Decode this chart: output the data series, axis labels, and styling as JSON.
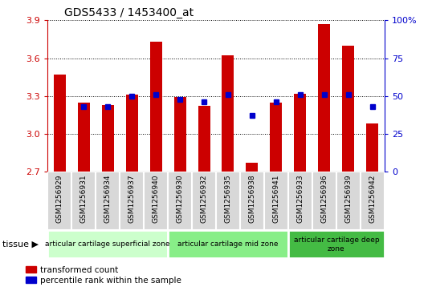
{
  "title": "GDS5433 / 1453400_at",
  "samples": [
    "GSM1256929",
    "GSM1256931",
    "GSM1256934",
    "GSM1256937",
    "GSM1256940",
    "GSM1256930",
    "GSM1256932",
    "GSM1256935",
    "GSM1256938",
    "GSM1256941",
    "GSM1256933",
    "GSM1256936",
    "GSM1256939",
    "GSM1256942"
  ],
  "transformed_count": [
    3.47,
    3.25,
    3.23,
    3.31,
    3.73,
    3.29,
    3.22,
    3.62,
    2.77,
    3.25,
    3.32,
    3.87,
    3.7,
    3.08
  ],
  "percentile_rank": [
    null,
    43,
    43,
    50,
    51,
    48,
    46,
    51,
    37,
    46,
    51,
    51,
    51,
    43
  ],
  "ylim_left": [
    2.7,
    3.9
  ],
  "ylim_right": [
    0,
    100
  ],
  "yticks_left": [
    2.7,
    3.0,
    3.3,
    3.6,
    3.9
  ],
  "yticks_right": [
    0,
    25,
    50,
    75,
    100
  ],
  "ytick_labels_right": [
    "0",
    "25",
    "50",
    "75",
    "100%"
  ],
  "bar_color": "#cc0000",
  "dot_color": "#0000cc",
  "bar_baseline": 2.7,
  "xlim": [
    -0.5,
    13.5
  ],
  "groups": [
    {
      "label": "articular cartilage superficial zone",
      "start": 0,
      "end": 4,
      "color": "#ccffcc"
    },
    {
      "label": "articular cartilage mid zone",
      "start": 5,
      "end": 9,
      "color": "#88ee88"
    },
    {
      "label": "articular cartilage deep\nzone",
      "start": 10,
      "end": 13,
      "color": "#44bb44"
    }
  ],
  "group_header": "tissue",
  "legend_items": [
    {
      "color": "#cc0000",
      "label": "transformed count"
    },
    {
      "color": "#0000cc",
      "label": "percentile rank within the sample"
    }
  ],
  "xticklabel_bg": "#d8d8d8",
  "chart_bg": "#ffffff"
}
